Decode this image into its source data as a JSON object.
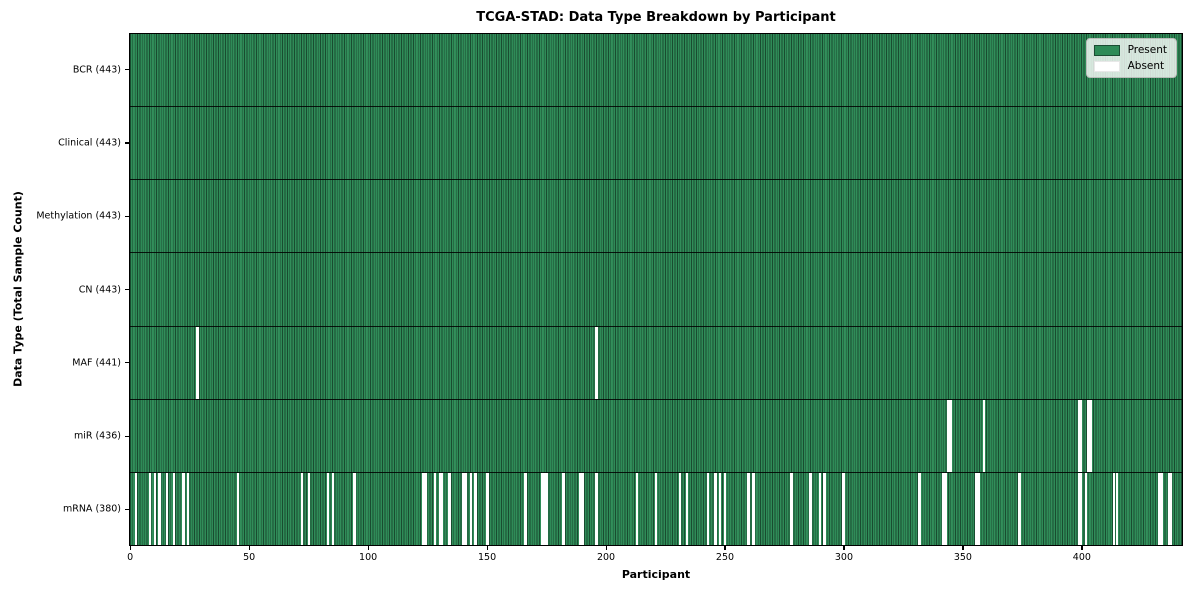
{
  "chart_data": {
    "type": "heatmap",
    "title": "TCGA-STAD: Data Type Breakdown by Participant",
    "xlabel": "Participant",
    "ylabel": "Data Type (Total Sample Count)",
    "n_participants": 443,
    "xlim": [
      0,
      443
    ],
    "x_ticks": [
      0,
      50,
      100,
      150,
      200,
      250,
      300,
      350,
      400
    ],
    "grid": false,
    "legend_position": "upper right",
    "colors": {
      "present": "#2e8b57",
      "absent": "#ffffff",
      "bar_edge": "#1b4d33",
      "row_separator": "#000000",
      "plot_border": "#000000"
    },
    "legend": [
      {
        "label": "Present",
        "color": "#2e8b57"
      },
      {
        "label": "Absent",
        "color": "#ffffff"
      }
    ],
    "rows": [
      {
        "data_type": "BCR",
        "label": "BCR (443)",
        "present_count": 443,
        "absent_count": 0,
        "absent_participants": []
      },
      {
        "data_type": "Clinical",
        "label": "Clinical (443)",
        "present_count": 443,
        "absent_count": 0,
        "absent_participants": []
      },
      {
        "data_type": "Methylation",
        "label": "Methylation (443)",
        "present_count": 443,
        "absent_count": 0,
        "absent_participants": []
      },
      {
        "data_type": "CN",
        "label": "CN (443)",
        "present_count": 443,
        "absent_count": 0,
        "absent_participants": []
      },
      {
        "data_type": "MAF",
        "label": "MAF (441)",
        "present_count": 441,
        "absent_count": 2,
        "absent_participants": [
          28,
          196
        ]
      },
      {
        "data_type": "miR",
        "label": "miR (436)",
        "present_count": 436,
        "absent_count": 7,
        "absent_participants": [
          344,
          345,
          359,
          399,
          400,
          403,
          404
        ]
      },
      {
        "data_type": "mRNA",
        "label": "mRNA (380)",
        "present_count": 380,
        "absent_count": 63,
        "absent_participants": [
          2,
          8,
          10,
          12,
          15,
          18,
          22,
          24,
          45,
          72,
          75,
          83,
          85,
          94,
          123,
          124,
          128,
          130,
          131,
          134,
          140,
          141,
          143,
          145,
          150,
          166,
          173,
          174,
          175,
          182,
          189,
          190,
          196,
          213,
          221,
          231,
          234,
          243,
          246,
          248,
          250,
          260,
          262,
          278,
          286,
          290,
          292,
          300,
          332,
          342,
          343,
          356,
          357,
          374,
          399,
          400,
          402,
          414,
          415,
          433,
          434,
          437,
          438
        ]
      }
    ]
  }
}
